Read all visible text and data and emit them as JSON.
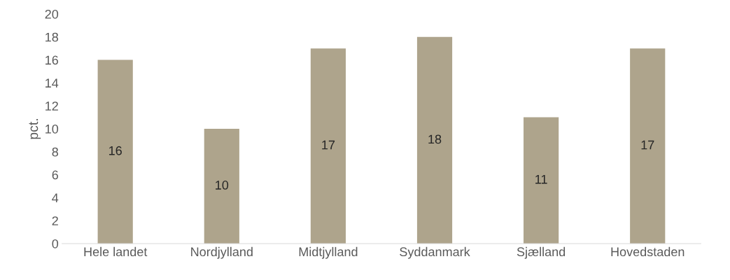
{
  "chart_data": {
    "type": "bar",
    "ylabel": "pct.",
    "categories": [
      "Hele landet",
      "Nordjylland",
      "Midtjylland",
      "Syddanmark",
      "Sjælland",
      "Hovedstaden"
    ],
    "values": [
      16,
      10,
      17,
      18,
      11,
      17
    ],
    "color": "#aea48c",
    "ylim": [
      0,
      20
    ],
    "yticks": [
      0,
      2,
      4,
      6,
      8,
      10,
      12,
      14,
      16,
      18,
      20
    ],
    "grid": false,
    "data_labels": true
  }
}
